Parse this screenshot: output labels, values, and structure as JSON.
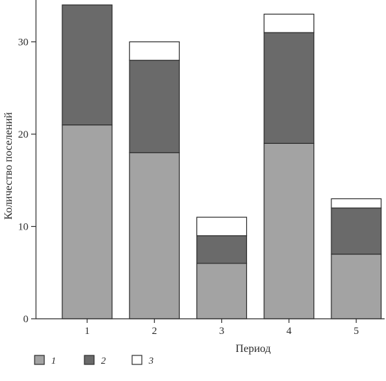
{
  "chart_data": {
    "type": "bar",
    "stacked": true,
    "categories": [
      "1",
      "2",
      "3",
      "4",
      "5"
    ],
    "series": [
      {
        "name": "1",
        "color": "#a3a3a3",
        "values": [
          21,
          18,
          6,
          19,
          7
        ]
      },
      {
        "name": "2",
        "color": "#6a6a6a",
        "values": [
          13,
          10,
          3,
          12,
          5
        ]
      },
      {
        "name": "3",
        "color": "#ffffff",
        "values": [
          0,
          2,
          2,
          2,
          1
        ]
      }
    ],
    "xlabel": "Период",
    "ylabel": "Количество поселений",
    "ylim": [
      0,
      34
    ],
    "yticks": [
      0,
      10,
      20,
      30
    ],
    "grid": false,
    "legend_position": "bottom-left"
  }
}
